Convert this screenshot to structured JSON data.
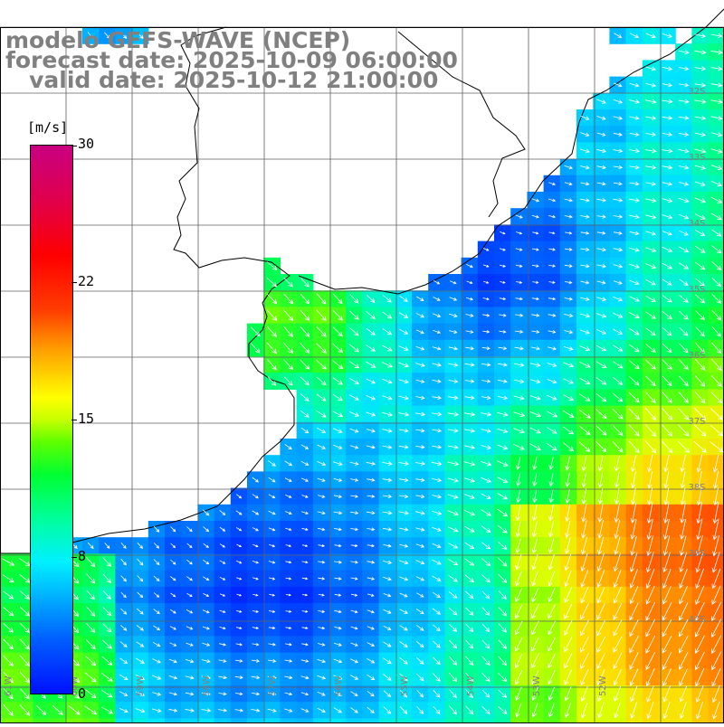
{
  "header": {
    "line1": "modelo GEFS-WAVE (NCEP)",
    "line2": "forecast date: 2025-10-09 06:00:00",
    "line3": "   valid date: 2025-10-12 21:00:00"
  },
  "colorbar": {
    "unit": "[m/s]",
    "ticks": [
      "30",
      "22",
      "15",
      "8",
      "0"
    ],
    "colors": [
      "#0010ff",
      "#00b4ff",
      "#00f0ff",
      "#00ff30",
      "#ffff00",
      "#ff9c00",
      "#ff0000",
      "#c80080"
    ]
  },
  "lat_labels": [
    "32S",
    "33S",
    "34S",
    "35S",
    "36S",
    "37S",
    "38S",
    "39S",
    "40S"
  ],
  "lon_labels": [
    "61W",
    "60W",
    "59W",
    "58W",
    "57W",
    "56W",
    "55W",
    "54W",
    "53W",
    "52W"
  ],
  "map_colors": {
    "grid": "#606060",
    "coast": "#000000",
    "arrow": "#ffffff"
  }
}
